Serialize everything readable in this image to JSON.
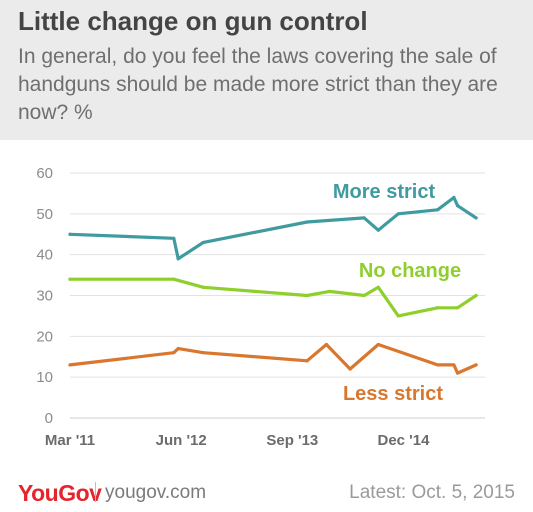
{
  "header": {
    "title": "Little change on gun control",
    "subtitle": "In general, do you feel the laws covering the sale of handguns should be made more strict than they are now? %"
  },
  "footer": {
    "logo_text": "YouGov",
    "site": "yougov.com",
    "latest": "Latest: Oct. 5, 2015"
  },
  "colors": {
    "more_strict": "#3f9b9f",
    "no_change": "#8fcf2c",
    "less_strict": "#d9772e",
    "axis_text": "#8c8c8c",
    "grid": "#e2e2e2",
    "brand": "#e3262c"
  },
  "chart_data": {
    "type": "line",
    "title": "Little change on gun control",
    "x_tick_labels": [
      "Mar '11",
      "Jun '12",
      "Sep '13",
      "Dec '14"
    ],
    "x_ticks": [
      0,
      15,
      30,
      45
    ],
    "xlim": [
      0,
      56
    ],
    "ylim": [
      0,
      60
    ],
    "y_ticks": [
      0,
      10,
      20,
      30,
      40,
      50,
      60
    ],
    "grid": true,
    "series": [
      {
        "name": "More strict",
        "color_key": "more_strict",
        "x": [
          0,
          14,
          14.6,
          18,
          32,
          39.7,
          41.6,
          44.3,
          49.6,
          51.8,
          52.3,
          54.8
        ],
        "y": [
          45,
          44,
          39,
          43,
          48,
          49,
          46,
          50,
          51,
          54,
          52,
          49
        ]
      },
      {
        "name": "No change",
        "color_key": "no_change",
        "x": [
          0,
          14,
          18,
          32,
          35,
          39.7,
          41.6,
          44.3,
          49.6,
          52.3,
          54.8
        ],
        "y": [
          34,
          34,
          32,
          30,
          31,
          30,
          32,
          25,
          27,
          27,
          30
        ]
      },
      {
        "name": "Less strict",
        "color_key": "less_strict",
        "x": [
          0,
          14,
          14.6,
          18,
          32,
          34.6,
          37.8,
          41.6,
          49.6,
          51.8,
          52.3,
          54.8
        ],
        "y": [
          13,
          16,
          17,
          16,
          14,
          18,
          12,
          18,
          13,
          13,
          11,
          13
        ]
      }
    ]
  }
}
